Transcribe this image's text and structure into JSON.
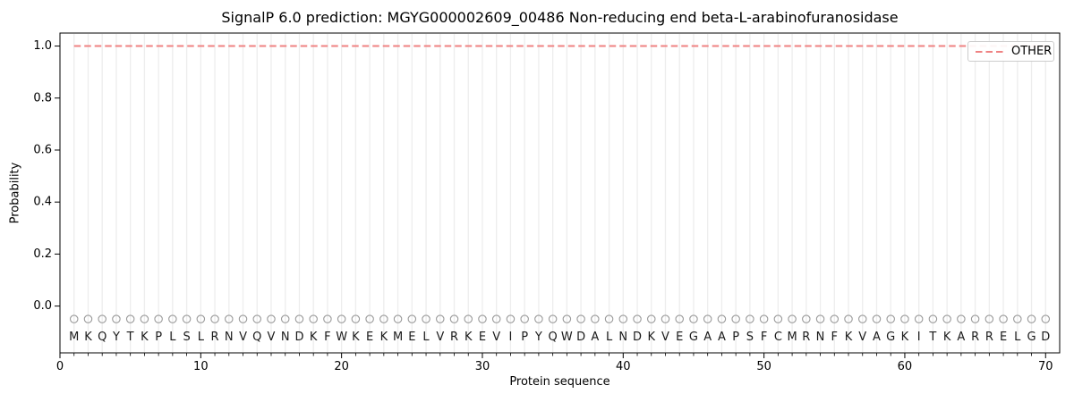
{
  "chart_data": {
    "type": "line",
    "title": "SignalP 6.0 prediction: MGYG000002609_00486 Non-reducing end beta-L-arabinofuranosidase",
    "xlabel": "Protein sequence",
    "ylabel": "Probability",
    "xlim": [
      0,
      71
    ],
    "ylim": [
      -0.18,
      1.05
    ],
    "xticks": [
      "0",
      "10",
      "20",
      "30",
      "40",
      "50",
      "60",
      "70"
    ],
    "yticks": [
      "0.0",
      "0.2",
      "0.4",
      "0.6",
      "0.8",
      "1.0"
    ],
    "grid": "light vertical gridline at every residue position 1-70",
    "legend": {
      "position": "upper right",
      "entries": [
        {
          "label": "OTHER",
          "line_style": "dashed",
          "color": "#ef8282"
        }
      ]
    },
    "sequence": "MKQYTKPLSLRNVQVNDKFWKEKMELVRKEVIPYQWDALNDKVEGAAPSFCMRNFKVAGKITKARRELGD",
    "series": [
      {
        "name": "OTHER",
        "line_style": "dashed",
        "color": "#ef8282",
        "x": [
          1,
          2,
          3,
          4,
          5,
          6,
          7,
          8,
          9,
          10,
          11,
          12,
          13,
          14,
          15,
          16,
          17,
          18,
          19,
          20,
          21,
          22,
          23,
          24,
          25,
          26,
          27,
          28,
          29,
          30,
          31,
          32,
          33,
          34,
          35,
          36,
          37,
          38,
          39,
          40,
          41,
          42,
          43,
          44,
          45,
          46,
          47,
          48,
          49,
          50,
          51,
          52,
          53,
          54,
          55,
          56,
          57,
          58,
          59,
          60,
          61,
          62,
          63,
          64,
          65,
          66,
          67,
          68,
          69,
          70
        ],
        "values": [
          1.0,
          1.0,
          1.0,
          1.0,
          1.0,
          1.0,
          1.0,
          1.0,
          1.0,
          1.0,
          1.0,
          1.0,
          1.0,
          1.0,
          1.0,
          1.0,
          1.0,
          1.0,
          1.0,
          1.0,
          1.0,
          1.0,
          1.0,
          1.0,
          1.0,
          1.0,
          1.0,
          1.0,
          1.0,
          1.0,
          1.0,
          1.0,
          1.0,
          1.0,
          1.0,
          1.0,
          1.0,
          1.0,
          1.0,
          1.0,
          1.0,
          1.0,
          1.0,
          1.0,
          1.0,
          1.0,
          1.0,
          1.0,
          1.0,
          1.0,
          1.0,
          1.0,
          1.0,
          1.0,
          1.0,
          1.0,
          1.0,
          1.0,
          1.0,
          1.0,
          1.0,
          1.0,
          1.0,
          1.0,
          1.0,
          1.0,
          1.0,
          1.0,
          1.0,
          1.0
        ]
      }
    ],
    "residue_markers": {
      "shape": "open-circle",
      "y": -0.05,
      "color": "#999999"
    },
    "residue_letters_y": -0.12
  },
  "colors": {
    "grid": "#ededed",
    "spine": "#000000",
    "marker": "#999999",
    "letter": "#1a1a1a",
    "line": "#ef8282",
    "legend_border": "#cccccc",
    "background": "#ffffff"
  }
}
